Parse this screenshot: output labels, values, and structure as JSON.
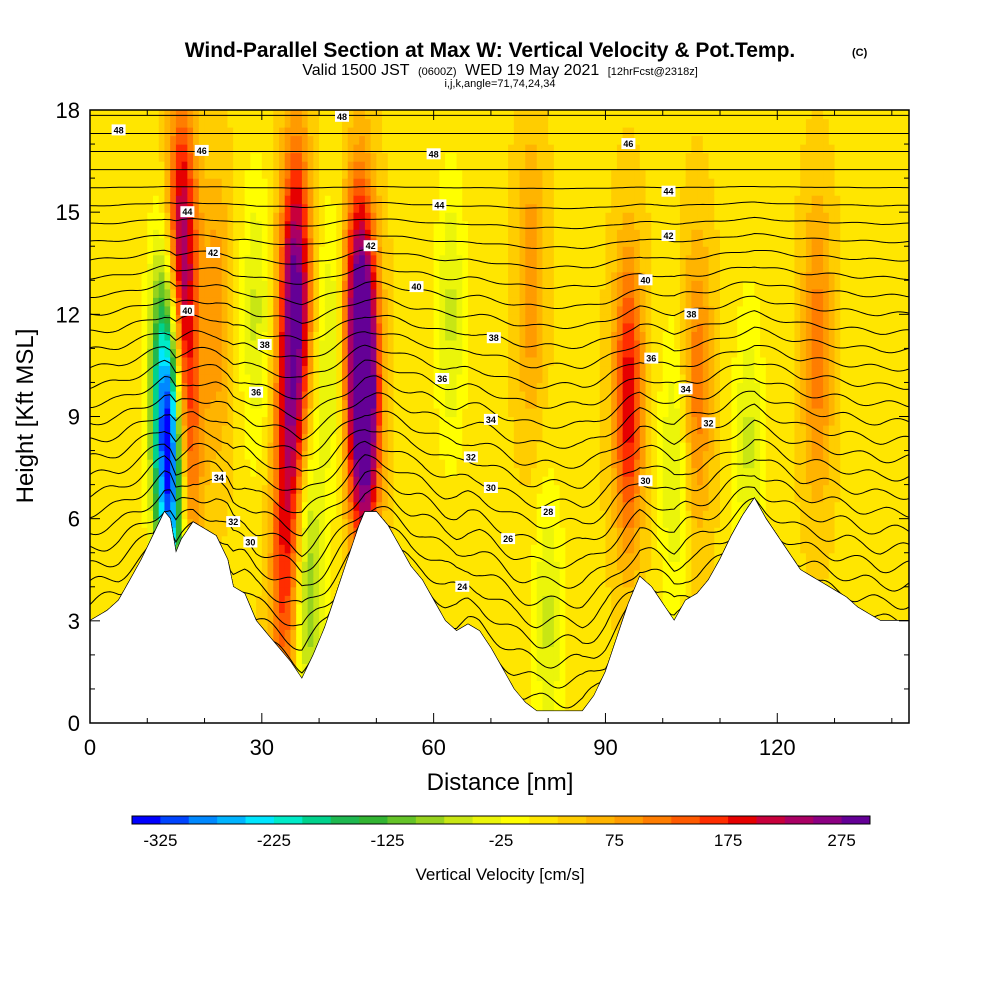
{
  "chart_data": {
    "type": "heatmap",
    "title": "Wind-Parallel Section at Max W: Vertical Velocity & Pot.Temp.",
    "title_mark": "(C)",
    "subtitle": {
      "prefix": "Valid 1500 JST",
      "utc": "(0600Z)",
      "date": "WED 19 May 2021",
      "forecast": "[12hrFcst@2318z]"
    },
    "section_params": "i,j,k,angle=71,74,24,34",
    "xlabel": "Distance [nm]",
    "ylabel": "Height [Kft MSL]",
    "xlim": [
      0,
      143
    ],
    "ylim": [
      0,
      18
    ],
    "x_ticks": [
      0,
      30,
      60,
      90,
      120
    ],
    "y_ticks": [
      0,
      3,
      6,
      9,
      12,
      15,
      18
    ],
    "x_tick_labels": [
      "0",
      "30",
      "60",
      "90",
      "120"
    ],
    "y_tick_labels": [
      "0",
      "3",
      "6",
      "9",
      "12",
      "15",
      "18"
    ],
    "terrain": [
      [
        0,
        3.0
      ],
      [
        3,
        3.3
      ],
      [
        5,
        3.6
      ],
      [
        7,
        4.2
      ],
      [
        9,
        4.8
      ],
      [
        11,
        5.5
      ],
      [
        13,
        6.2
      ],
      [
        14,
        6.0
      ],
      [
        15,
        5.0
      ],
      [
        16,
        5.4
      ],
      [
        18,
        5.9
      ],
      [
        20,
        5.7
      ],
      [
        22,
        5.5
      ],
      [
        24,
        4.8
      ],
      [
        25,
        4.0
      ],
      [
        27,
        3.8
      ],
      [
        29,
        3.0
      ],
      [
        31,
        2.6
      ],
      [
        33,
        2.2
      ],
      [
        35,
        1.8
      ],
      [
        37,
        1.3
      ],
      [
        39,
        2.0
      ],
      [
        41,
        2.8
      ],
      [
        43,
        3.8
      ],
      [
        45,
        4.8
      ],
      [
        47,
        5.8
      ],
      [
        48,
        6.2
      ],
      [
        50,
        6.2
      ],
      [
        52,
        5.8
      ],
      [
        54,
        5.2
      ],
      [
        56,
        4.6
      ],
      [
        58,
        4.2
      ],
      [
        60,
        3.6
      ],
      [
        62,
        3.0
      ],
      [
        64,
        2.7
      ],
      [
        66,
        2.9
      ],
      [
        68,
        2.7
      ],
      [
        70,
        2.2
      ],
      [
        72,
        1.6
      ],
      [
        74,
        1.0
      ],
      [
        76,
        0.6
      ],
      [
        78,
        0.35
      ],
      [
        82,
        0.35
      ],
      [
        86,
        0.35
      ],
      [
        88,
        0.8
      ],
      [
        90,
        1.5
      ],
      [
        92,
        2.5
      ],
      [
        94,
        3.5
      ],
      [
        96,
        4.3
      ],
      [
        98,
        4.0
      ],
      [
        100,
        3.5
      ],
      [
        102,
        3.0
      ],
      [
        104,
        3.6
      ],
      [
        106,
        3.8
      ],
      [
        108,
        4.2
      ],
      [
        110,
        4.8
      ],
      [
        112,
        5.5
      ],
      [
        114,
        6.1
      ],
      [
        116,
        6.6
      ],
      [
        118,
        6.0
      ],
      [
        120,
        5.5
      ],
      [
        122,
        5.0
      ],
      [
        124,
        4.5
      ],
      [
        126,
        4.3
      ],
      [
        128,
        4.1
      ],
      [
        130,
        3.9
      ],
      [
        132,
        3.7
      ],
      [
        134,
        3.4
      ],
      [
        136,
        3.2
      ],
      [
        138,
        3.0
      ],
      [
        140,
        3.0
      ],
      [
        143,
        3.0
      ]
    ],
    "vertical_velocity_features": [
      {
        "x": 13,
        "z": 10,
        "w": -225
      },
      {
        "x": 14.5,
        "z": 7,
        "w": -325
      },
      {
        "x": 16,
        "z": 14,
        "w": 225
      },
      {
        "x": 16.5,
        "z": 8,
        "w": 200
      },
      {
        "x": 22,
        "z": 12,
        "w": 75
      },
      {
        "x": 29,
        "z": 12,
        "w": -75
      },
      {
        "x": 36,
        "z": 13,
        "w": 225
      },
      {
        "x": 35,
        "z": 9,
        "w": 150
      },
      {
        "x": 34,
        "z": 4,
        "w": 125
      },
      {
        "x": 38,
        "z": 4,
        "w": -125
      },
      {
        "x": 42,
        "z": 11,
        "w": -75
      },
      {
        "x": 48,
        "z": 9,
        "w": 275
      },
      {
        "x": 47,
        "z": 12,
        "w": 225
      },
      {
        "x": 63,
        "z": 12,
        "w": -75
      },
      {
        "x": 80,
        "z": 3,
        "w": -75
      },
      {
        "x": 77,
        "z": 13,
        "w": 75
      },
      {
        "x": 94,
        "z": 9.5,
        "w": 175
      },
      {
        "x": 102,
        "z": 7.5,
        "w": -75
      },
      {
        "x": 106,
        "z": 10,
        "w": 100
      },
      {
        "x": 115,
        "z": 8.2,
        "w": -75
      },
      {
        "x": 127,
        "z": 11,
        "w": 100
      },
      {
        "x": 0,
        "z": 16,
        "w": 0
      }
    ],
    "potential_temperature_labels": [
      {
        "x": 5,
        "z": 17.4,
        "label": "48"
      },
      {
        "x": 44,
        "z": 17.8,
        "label": "48"
      },
      {
        "x": 60,
        "z": 16.7,
        "label": "48"
      },
      {
        "x": 94,
        "z": 17.0,
        "label": "46"
      },
      {
        "x": 19.5,
        "z": 16.8,
        "label": "46"
      },
      {
        "x": 101,
        "z": 15.6,
        "label": "44"
      },
      {
        "x": 17,
        "z": 15.0,
        "label": "44"
      },
      {
        "x": 61,
        "z": 15.2,
        "label": "44"
      },
      {
        "x": 21.5,
        "z": 13.8,
        "label": "42"
      },
      {
        "x": 49,
        "z": 14.0,
        "label": "42"
      },
      {
        "x": 101,
        "z": 14.3,
        "label": "42"
      },
      {
        "x": 17,
        "z": 12.1,
        "label": "40"
      },
      {
        "x": 57,
        "z": 12.8,
        "label": "40"
      },
      {
        "x": 97,
        "z": 13.0,
        "label": "40"
      },
      {
        "x": 30.5,
        "z": 11.1,
        "label": "38"
      },
      {
        "x": 70.5,
        "z": 11.3,
        "label": "38"
      },
      {
        "x": 105,
        "z": 12.0,
        "label": "38"
      },
      {
        "x": 29,
        "z": 9.7,
        "label": "36"
      },
      {
        "x": 61.5,
        "z": 10.1,
        "label": "36"
      },
      {
        "x": 98,
        "z": 10.7,
        "label": "36"
      },
      {
        "x": 70,
        "z": 8.9,
        "label": "34"
      },
      {
        "x": 104,
        "z": 9.8,
        "label": "34"
      },
      {
        "x": 22.5,
        "z": 7.2,
        "label": "34"
      },
      {
        "x": 108,
        "z": 8.8,
        "label": "32"
      },
      {
        "x": 66.5,
        "z": 7.8,
        "label": "32"
      },
      {
        "x": 25,
        "z": 5.9,
        "label": "32"
      },
      {
        "x": 70,
        "z": 6.9,
        "label": "30"
      },
      {
        "x": 97,
        "z": 7.1,
        "label": "30"
      },
      {
        "x": 28,
        "z": 5.3,
        "label": "30"
      },
      {
        "x": 80,
        "z": 6.2,
        "label": "28"
      },
      {
        "x": 73,
        "z": 5.4,
        "label": "26"
      },
      {
        "x": 65,
        "z": 4.0,
        "label": "24"
      }
    ],
    "colorbar": {
      "title": "Vertical Velocity [cm/s]",
      "tick_labels": [
        "-325",
        "-225",
        "-125",
        "-25",
        "75",
        "175",
        "275"
      ],
      "tick_values": [
        -325,
        -225,
        -125,
        -25,
        75,
        175,
        275
      ],
      "bounds": [
        -350,
        300
      ],
      "step": 25,
      "colors": [
        "#0000ff",
        "#0044ff",
        "#0088ff",
        "#00b4ff",
        "#00e6ff",
        "#00ebc8",
        "#00d28c",
        "#1eb850",
        "#32b432",
        "#64c328",
        "#96d21e",
        "#c8e614",
        "#ebf50a",
        "#ffff00",
        "#ffe600",
        "#ffcd00",
        "#ffb400",
        "#ff9b00",
        "#ff7d00",
        "#ff5a00",
        "#ff2d00",
        "#e60000",
        "#c8003c",
        "#aa0064",
        "#8c0082",
        "#640096"
      ]
    }
  }
}
